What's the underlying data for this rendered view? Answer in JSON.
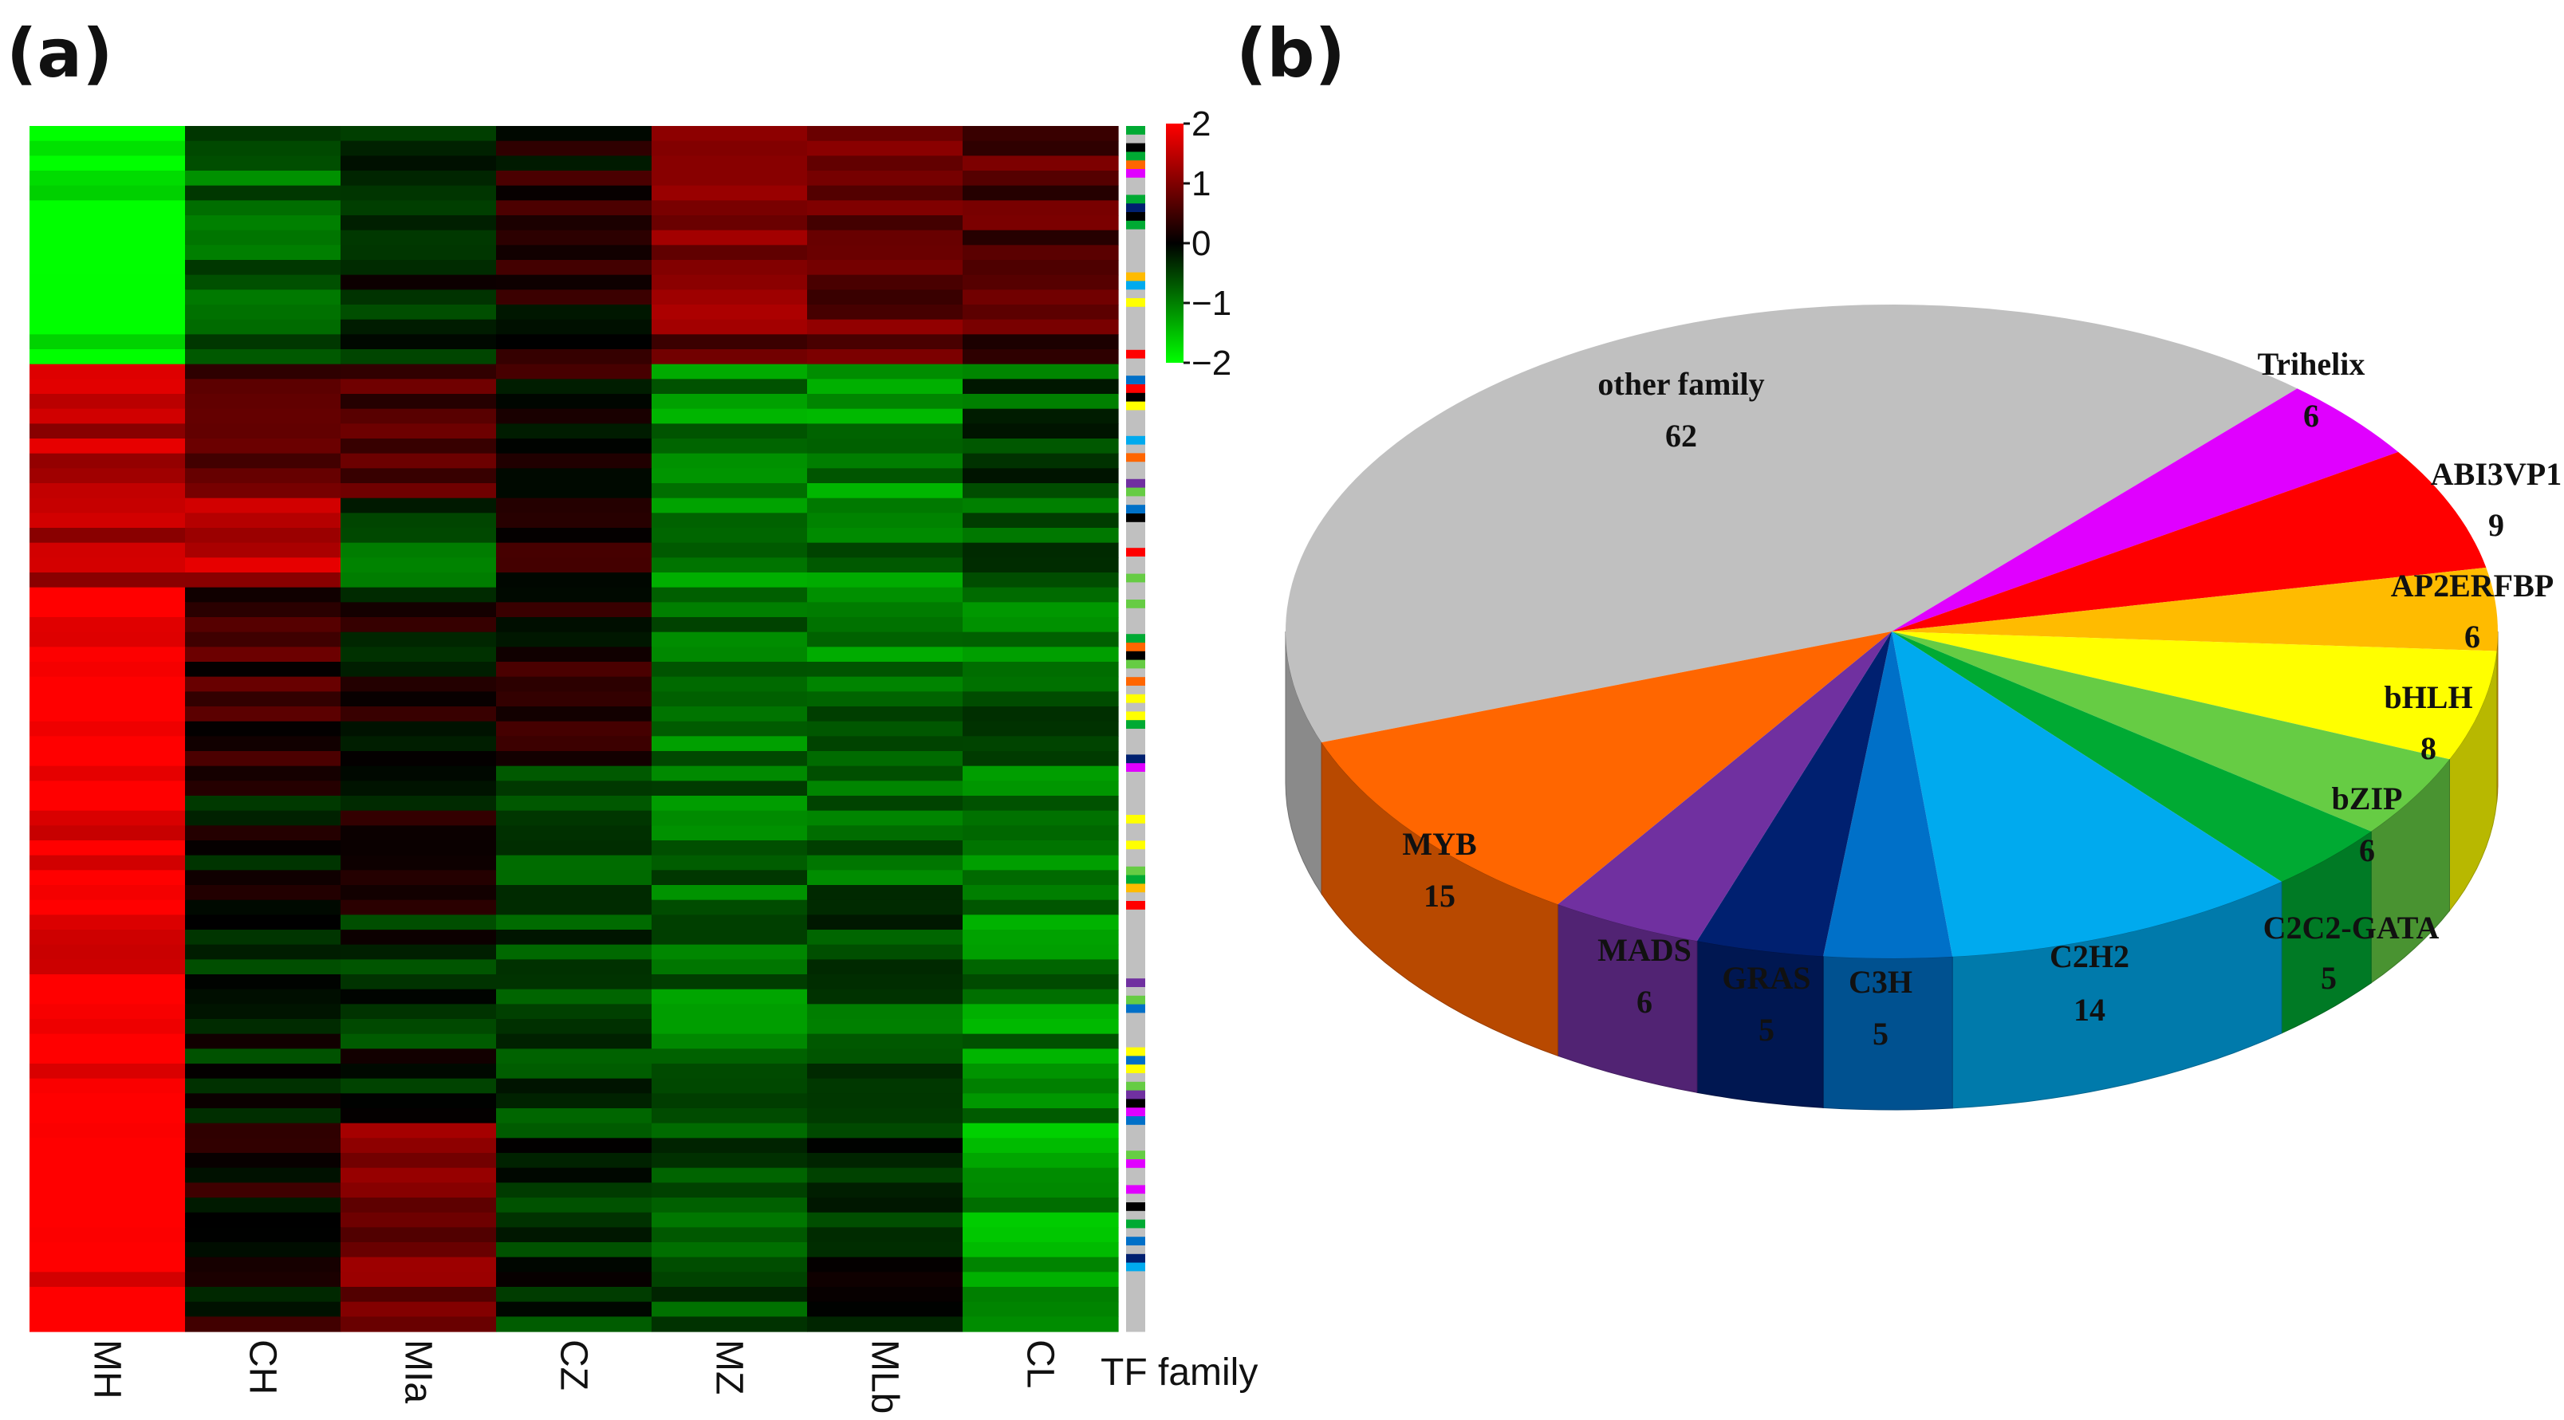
{
  "panels": {
    "a_label": "(a)",
    "b_label": "(b)"
  },
  "heatmap": {
    "columns": [
      "MH",
      "CH",
      "MIa",
      "CZ",
      "MZ",
      "MLb",
      "CL"
    ],
    "tf_label": "TF family",
    "colorbar": {
      "ticks": [
        2,
        1,
        0,
        -1,
        -2
      ],
      "tick_labels": [
        "2",
        "1",
        "0",
        "−1",
        "−2"
      ],
      "high_color": "#ff0000",
      "mid_color": "#000000",
      "low_color": "#00ff00"
    },
    "row_groups": [
      {
        "rows": 16,
        "levels": [
          -2.0,
          -0.8,
          -0.3,
          0.2,
          0.9,
          0.8,
          0.6
        ]
      },
      {
        "rows": 9,
        "levels": [
          1.4,
          0.6,
          0.5,
          0.2,
          -1.0,
          -1.1,
          -0.6
        ]
      },
      {
        "rows": 6,
        "levels": [
          1.5,
          1.4,
          -0.6,
          0.3,
          -1.0,
          -0.9,
          -0.7
        ]
      },
      {
        "rows": 12,
        "levels": [
          2.0,
          0.4,
          0.0,
          0.2,
          -0.9,
          -0.9,
          -0.8
        ]
      },
      {
        "rows": 10,
        "levels": [
          2.0,
          0.0,
          0.0,
          -0.6,
          -0.8,
          -0.7,
          -1.0
        ]
      },
      {
        "rows": 14,
        "levels": [
          2.0,
          -0.2,
          -0.3,
          -0.5,
          -0.9,
          -0.6,
          -1.0
        ]
      },
      {
        "rows": 14,
        "levels": [
          2.0,
          0.1,
          1.0,
          -0.3,
          -0.6,
          -0.3,
          -1.2
        ]
      }
    ]
  },
  "chart_data": {
    "type": "pie",
    "title": "",
    "slices": [
      {
        "label": "other family",
        "value": 62,
        "value_label": "62",
        "color": "#c0c0c0"
      },
      {
        "label": "Trihelix",
        "value": 6,
        "value_label": "6",
        "color": "#e000ff"
      },
      {
        "label": "ABI3VP1",
        "value": 9,
        "value_label": "9",
        "color": "#ff0000"
      },
      {
        "label": "AP2ERFBP",
        "value": 6,
        "value_label": "6",
        "color": "#ffbb00"
      },
      {
        "label": "bHLH",
        "value": 8,
        "value_label": "8",
        "color": "#ffff00"
      },
      {
        "label": "bZIP",
        "value": 6,
        "value_label": "6",
        "color": "#66cc44"
      },
      {
        "label": "C2C2-GATA",
        "value": 5,
        "value_label": "5",
        "color": "#00aa33"
      },
      {
        "label": "C2H2",
        "value": 14,
        "value_label": "14",
        "color": "#00aaee"
      },
      {
        "label": "C3H",
        "value": 5,
        "value_label": "5",
        "color": "#0070c8"
      },
      {
        "label": "GRAS",
        "value": 5,
        "value_label": "5",
        "color": "#002070"
      },
      {
        "label": "MADS",
        "value": 6,
        "value_label": "6",
        "color": "#7030a0"
      },
      {
        "label": "MYB",
        "value": 15,
        "value_label": "15",
        "color": "#ff6600"
      }
    ]
  }
}
